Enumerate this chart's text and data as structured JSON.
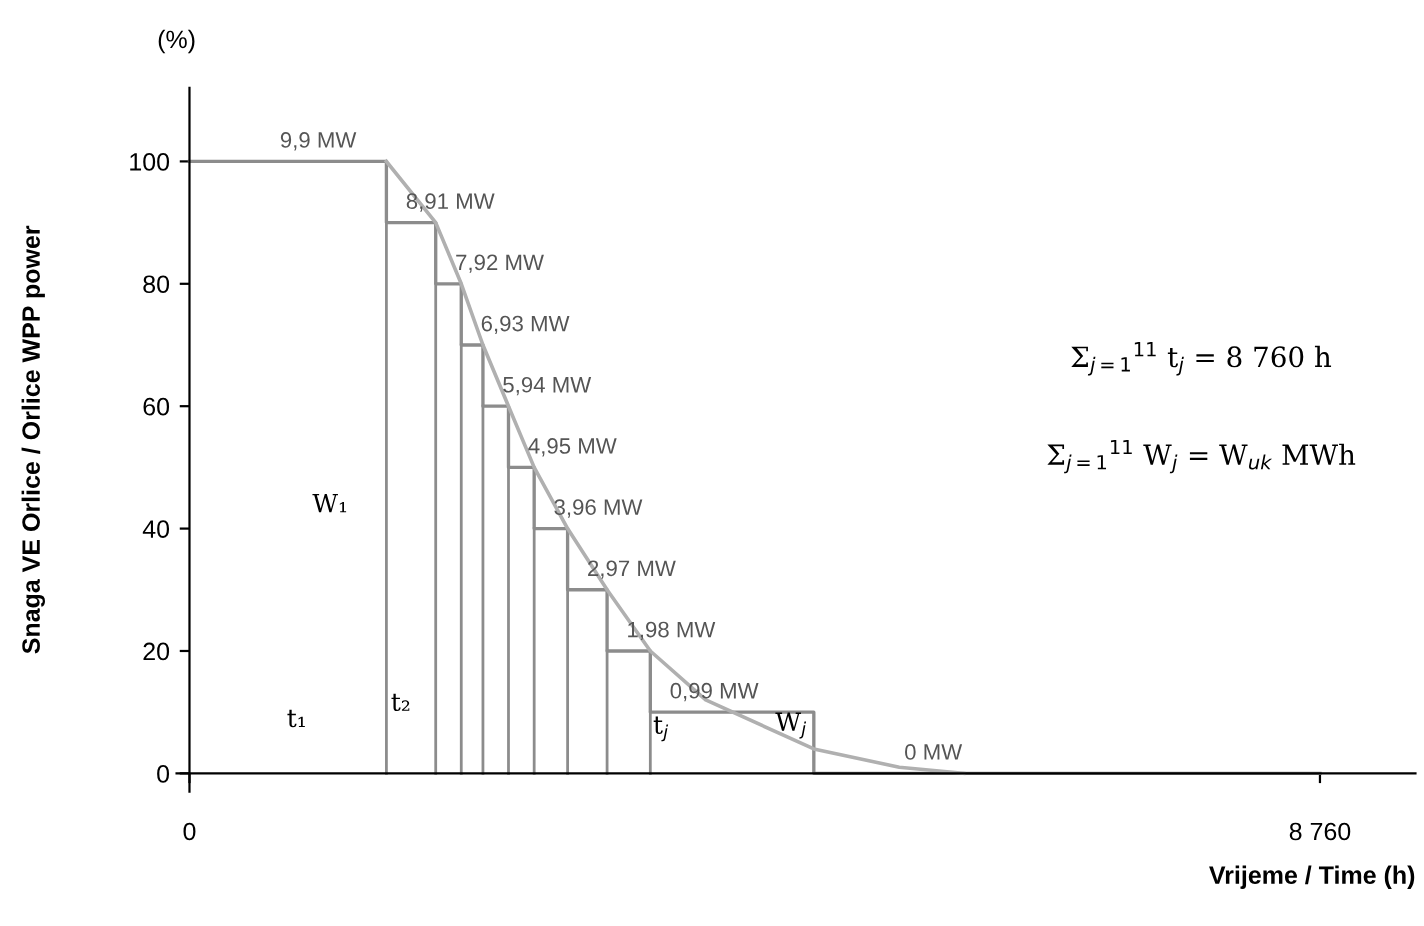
{
  "chart_data": {
    "type": "step",
    "xlabel": "Vrijeme / Time (h)",
    "ylabel": "Snaga VE Orlice / Orlice WPP power",
    "xlim": [
      -100,
      9500
    ],
    "ylim": [
      -3,
      112
    ],
    "xticks": [
      0,
      {
        "value": 8760,
        "label": "8 760"
      }
    ],
    "yticks": [
      0,
      20,
      40,
      60,
      80,
      100
    ],
    "legend": false,
    "series": [
      {
        "color": "#8c8c8c",
        "x": [
          0,
          1526,
          1908,
          2106,
          2274,
          2472,
          2671,
          2930,
          3236,
          3571,
          4838,
          8760
        ],
        "values": [
          100,
          90,
          80,
          70,
          60,
          50,
          40,
          30,
          20,
          10,
          0,
          0
        ]
      },
      {
        "type": "line",
        "color": "#b0b0b0",
        "x": [
          1526,
          1908,
          2106,
          2274,
          2472,
          2671,
          2930,
          3236,
          3571,
          4000,
          4838,
          5500,
          6000
        ],
        "values": [
          100,
          90,
          80,
          70,
          60,
          50,
          40,
          30,
          20,
          12,
          4,
          1,
          0
        ]
      }
    ],
    "annotations": [
      "9,9 MW",
      "8,91 MW",
      "7,92 MW",
      "6,93 MW",
      "5,94 MW",
      "4,95 MW",
      "3,96 MW",
      "2,97 MW",
      "1,98 MW",
      "0,99 MW",
      "0 MW",
      "(%)",
      "W₁",
      "t₁",
      "t₂",
      "t$_{j}$",
      "W$_{j}$",
      "Σ$_{j=1}$$^{11}$ t$_{j}$ = 8 760 h",
      "Σ$_{j=1}$$^{11}$ W$_{j}$ = W$_{uk}$ MWh"
    ]
  }
}
